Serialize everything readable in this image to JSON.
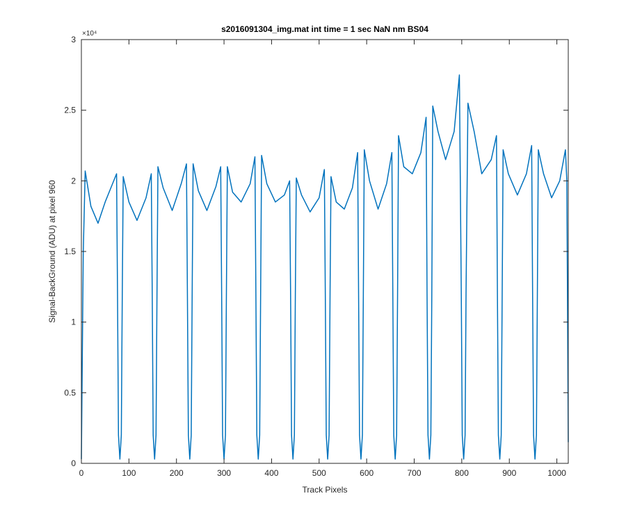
{
  "chart_data": {
    "type": "line",
    "title": "s2016091304_img.mat int time = 1 sec  NaN nm BS04",
    "x_label": "Track Pixels",
    "y_label": "Signal-BackGround (ADU) at pixel 960",
    "y_axis_multiplier": "×10⁴",
    "xlim": [
      0,
      1024
    ],
    "ylim": [
      0,
      30000
    ],
    "xticks": [
      0,
      100,
      200,
      300,
      400,
      500,
      600,
      700,
      800,
      900,
      1000
    ],
    "yticks": [
      0,
      {
        "value": 5000,
        "label": "0.5"
      },
      {
        "value": 10000,
        "label": "1"
      },
      {
        "value": 15000,
        "label": "1.5"
      },
      {
        "value": 20000,
        "label": "2"
      },
      {
        "value": 25000,
        "label": "2.5"
      },
      {
        "value": 30000,
        "label": "3"
      }
    ],
    "grid": false,
    "x": [
      0,
      4,
      8,
      20,
      35,
      50,
      62,
      74,
      76,
      78,
      81,
      84,
      86,
      88,
      100,
      117,
      136,
      147,
      149,
      151,
      154,
      157,
      159,
      161,
      172,
      191,
      210,
      221,
      223,
      225,
      228,
      231,
      233,
      235,
      246,
      264,
      283,
      293,
      295,
      297,
      300,
      303,
      305,
      307,
      318,
      336,
      355,
      365,
      367,
      369,
      372,
      375,
      377,
      379,
      390,
      408,
      427,
      438,
      440,
      442,
      445,
      448,
      450,
      452,
      463,
      481,
      500,
      511,
      513,
      515,
      518,
      521,
      523,
      525,
      536,
      553,
      570,
      581,
      583,
      585,
      588,
      591,
      593,
      595,
      606,
      624,
      642,
      653,
      655,
      657,
      660,
      663,
      665,
      667,
      678,
      696,
      714,
      725,
      727,
      729,
      732,
      735,
      737,
      739,
      750,
      766,
      784,
      795,
      799,
      801,
      804,
      807,
      809,
      813,
      826,
      842,
      862,
      873,
      875,
      877,
      880,
      883,
      885,
      887,
      898,
      917,
      936,
      947,
      949,
      951,
      954,
      957,
      959,
      961,
      972,
      989,
      1006,
      1018,
      1021,
      1024
    ],
    "series": [
      {
        "name": "signal",
        "color": "#0072BD",
        "values": [
          300,
          15000,
          20700,
          18200,
          17000,
          18500,
          19500,
          20500,
          12000,
          2000,
          300,
          2000,
          12000,
          20300,
          18500,
          17200,
          18800,
          20500,
          12000,
          2000,
          300,
          2000,
          12000,
          21000,
          19500,
          17900,
          19800,
          21200,
          12000,
          2000,
          300,
          2000,
          12000,
          21200,
          19300,
          17900,
          19600,
          21000,
          12000,
          2000,
          300,
          2000,
          12000,
          21000,
          19200,
          18500,
          19800,
          21700,
          12000,
          2000,
          300,
          2000,
          12000,
          21800,
          19800,
          18500,
          19000,
          20000,
          12000,
          2000,
          300,
          2000,
          12000,
          20200,
          19000,
          17800,
          18800,
          20800,
          12000,
          2000,
          300,
          2000,
          12000,
          20300,
          18500,
          18000,
          19500,
          22000,
          12000,
          2000,
          300,
          2000,
          12000,
          22200,
          20000,
          18000,
          19800,
          22000,
          12000,
          2000,
          300,
          2000,
          12000,
          23200,
          21000,
          20500,
          22000,
          24500,
          12000,
          2000,
          300,
          2000,
          12000,
          25300,
          23500,
          21500,
          23500,
          27500,
          12000,
          2000,
          300,
          2000,
          12000,
          25500,
          23500,
          20500,
          21500,
          23200,
          12000,
          2000,
          300,
          2000,
          12000,
          22200,
          20500,
          19000,
          20500,
          22500,
          12000,
          2000,
          300,
          2000,
          12000,
          22200,
          20500,
          18800,
          20000,
          22200,
          20000,
          1500
        ]
      }
    ]
  }
}
